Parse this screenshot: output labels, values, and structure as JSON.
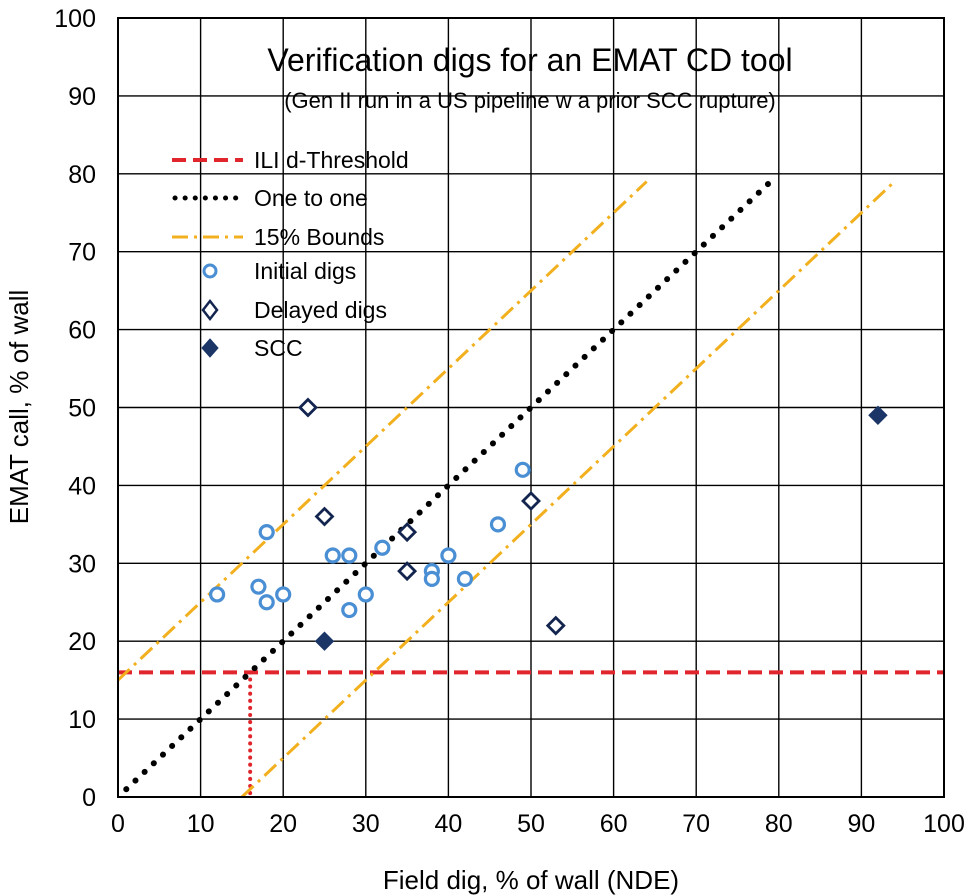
{
  "chart_data": {
    "type": "scatter",
    "title": "Verification digs for an EMAT CD tool",
    "subtitle": "(Gen II run in a US pipeline w a prior SCC rupture)",
    "xlabel": "Field dig, % of wall (NDE)",
    "ylabel": "EMAT call, % of wall",
    "xlim": [
      0,
      100
    ],
    "ylim": [
      0,
      100
    ],
    "x_ticks": [
      "0",
      "10",
      "20",
      "30",
      "40",
      "50",
      "60",
      "70",
      "80",
      "90",
      "100"
    ],
    "y_ticks": [
      "0",
      "10",
      "20",
      "30",
      "40",
      "50",
      "60",
      "70",
      "80",
      "90",
      "100"
    ],
    "grid": true,
    "legend_position": "top-left",
    "lines": [
      {
        "name": "ILI d-Threshold",
        "style": "dashed",
        "color": "#e0262c",
        "threshold": 16,
        "x": [
          0,
          100,
          16,
          16
        ],
        "y": [
          16,
          16,
          16,
          0
        ]
      },
      {
        "name": "One to one",
        "style": "dotted",
        "color": "#000000",
        "x": [
          1,
          79
        ],
        "y": [
          1,
          79
        ]
      },
      {
        "name": "15% Bounds",
        "style": "dash-dot",
        "color": "#f2b01e",
        "offset": 15,
        "upper": {
          "x": [
            0,
            64
          ],
          "y": [
            15,
            79
          ]
        },
        "lower": {
          "x": [
            15,
            94
          ],
          "y": [
            0,
            79
          ]
        }
      }
    ],
    "series": [
      {
        "name": "Initial digs",
        "marker": "circle-open",
        "color": "#4a8fd4",
        "points": [
          [
            12,
            26
          ],
          [
            17,
            27
          ],
          [
            18,
            25
          ],
          [
            18,
            34
          ],
          [
            20,
            26
          ],
          [
            26,
            31
          ],
          [
            28,
            31
          ],
          [
            28,
            24
          ],
          [
            30,
            26
          ],
          [
            32,
            32
          ],
          [
            38,
            29
          ],
          [
            38,
            28
          ],
          [
            40,
            31
          ],
          [
            42,
            28
          ],
          [
            46,
            35
          ],
          [
            49,
            42
          ]
        ]
      },
      {
        "name": "Delayed digs",
        "marker": "diamond-open",
        "color": "#13254f",
        "points": [
          [
            23,
            50
          ],
          [
            25,
            36
          ],
          [
            35,
            34
          ],
          [
            35,
            29
          ],
          [
            50,
            38
          ],
          [
            53,
            22
          ]
        ]
      },
      {
        "name": "SCC",
        "marker": "diamond-filled",
        "color": "#1a3566",
        "points": [
          [
            25,
            20
          ],
          [
            92,
            49
          ]
        ]
      }
    ]
  }
}
